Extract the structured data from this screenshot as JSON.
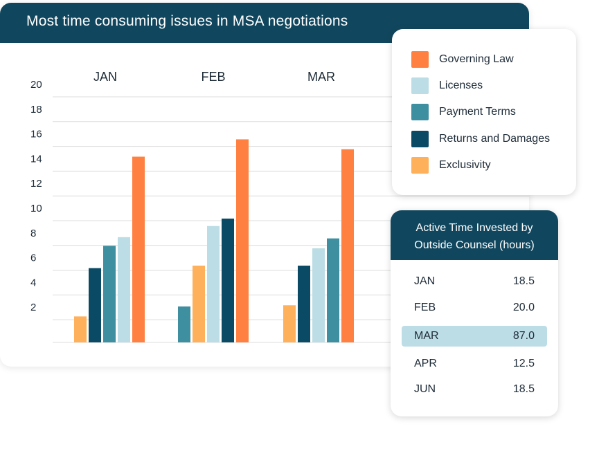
{
  "title": "Most time consuming issues in MSA negotiations",
  "colors": {
    "header_bg": "#11475e",
    "gridline": "#dcdcdc",
    "highlight_row": "#bddde6"
  },
  "chart_data": {
    "type": "bar",
    "title": "Most time consuming issues in MSA negotiations",
    "categories": [
      "JAN",
      "FEB",
      "MAR"
    ],
    "ylim": [
      0,
      20
    ],
    "yticks": [
      2,
      4,
      6,
      8,
      10,
      12,
      14,
      16,
      18,
      20
    ],
    "grid": true,
    "legend_position": "top-right",
    "series": [
      {
        "name": "Governing Law",
        "color": "#ff8040",
        "values": [
          15.0,
          16.4,
          15.6
        ]
      },
      {
        "name": "Licenses",
        "color": "#bcdde5",
        "values": [
          8.5,
          9.4,
          7.6
        ]
      },
      {
        "name": "Payment Terms",
        "color": "#3e8fa0",
        "values": [
          7.8,
          2.9,
          8.4
        ]
      },
      {
        "name": "Returns and Damages",
        "color": "#0b4a65",
        "values": [
          6.0,
          10.0,
          6.2
        ]
      },
      {
        "name": "Exclusivity",
        "color": "#ffb05a",
        "values": [
          2.1,
          6.2,
          3.0
        ]
      }
    ],
    "bar_order": {
      "JAN": [
        "Exclusivity",
        "Returns and Damages",
        "Payment Terms",
        "Licenses",
        "Governing Law"
      ],
      "FEB": [
        "Payment Terms",
        "Exclusivity",
        "Licenses",
        "Returns and Damages",
        "Governing Law"
      ],
      "MAR": [
        "Exclusivity",
        "Returns and Damages",
        "Licenses",
        "Payment Terms",
        "Governing Law"
      ]
    }
  },
  "legend": {
    "items": [
      {
        "label": "Governing Law",
        "color": "#ff8040"
      },
      {
        "label": "Licenses",
        "color": "#bcdde5"
      },
      {
        "label": "Payment Terms",
        "color": "#3e8fa0"
      },
      {
        "label": "Returns and Damages",
        "color": "#0b4a65"
      },
      {
        "label": "Exclusivity",
        "color": "#ffb05a"
      }
    ]
  },
  "table": {
    "title": "Active Time Invested by Outside Counsel (hours)",
    "rows": [
      {
        "month": "JAN",
        "value": "18.5",
        "highlight": false
      },
      {
        "month": "FEB",
        "value": "20.0",
        "highlight": false
      },
      {
        "month": "MAR",
        "value": "87.0",
        "highlight": true
      },
      {
        "month": "APR",
        "value": "12.5",
        "highlight": false
      },
      {
        "month": "JUN",
        "value": "18.5",
        "highlight": false
      }
    ]
  }
}
